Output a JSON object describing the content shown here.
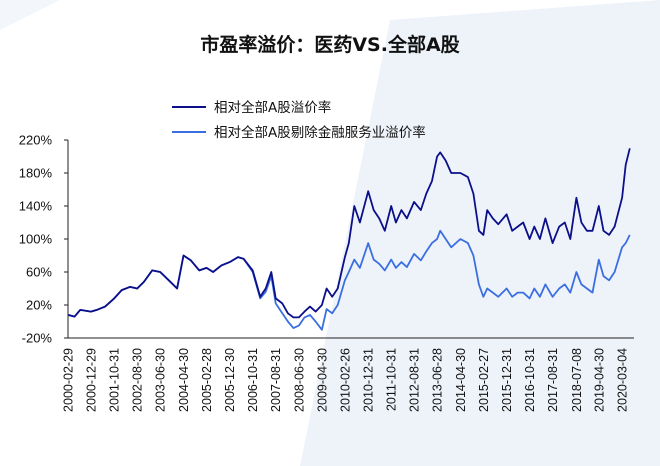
{
  "colors": {
    "series1": "#0b0f8a",
    "series2": "#3b6fe0",
    "background_shape": "#eef3fa"
  },
  "chart_data": {
    "type": "line",
    "title": "市盈率溢价：医药VS.全部A股",
    "xlabel": "",
    "ylabel": "",
    "ylim": [
      -20,
      220
    ],
    "y_ticks": [
      "220%",
      "180%",
      "140%",
      "100%",
      "60%",
      "20%",
      "-20%"
    ],
    "y_tick_values": [
      220,
      180,
      140,
      100,
      60,
      20,
      -20
    ],
    "x_ticks": [
      "2000-02-29",
      "2000-12-29",
      "2001-10-31",
      "2002-08-30",
      "2003-06-30",
      "2004-04-30",
      "2005-02-28",
      "2005-12-30",
      "2006-10-31",
      "2007-08-31",
      "2008-06-30",
      "2009-04-30",
      "2010-02-26",
      "2010-12-31",
      "2011-10-31",
      "2012-08-31",
      "2013-06-28",
      "2014-04-30",
      "2015-02-27",
      "2015-12-31",
      "2016-10-31",
      "2017-08-31",
      "2018-07-08",
      "2019-04-30",
      "2020-03-04"
    ],
    "x_tick_values": [
      2000.16,
      2000.99,
      2001.83,
      2002.66,
      2003.49,
      2004.33,
      2005.16,
      2006.0,
      2006.83,
      2007.66,
      2008.5,
      2009.33,
      2010.16,
      2011.0,
      2011.83,
      2012.66,
      2013.49,
      2014.33,
      2015.16,
      2016.0,
      2016.83,
      2017.66,
      2018.52,
      2019.33,
      2020.17
    ],
    "legend_position": "top-center",
    "grid": false,
    "series": [
      {
        "name": "相对全部A股溢价率",
        "x": [
          2000.16,
          2000.4,
          2000.6,
          2000.99,
          2001.2,
          2001.5,
          2001.83,
          2002.1,
          2002.4,
          2002.66,
          2002.9,
          2003.2,
          2003.49,
          2003.8,
          2004.1,
          2004.33,
          2004.6,
          2004.9,
          2005.16,
          2005.4,
          2005.7,
          2006.0,
          2006.3,
          2006.5,
          2006.83,
          2007.1,
          2007.3,
          2007.5,
          2007.66,
          2007.9,
          2008.1,
          2008.3,
          2008.5,
          2008.7,
          2008.9,
          2009.1,
          2009.33,
          2009.5,
          2009.7,
          2009.9,
          2010.16,
          2010.3,
          2010.5,
          2010.7,
          2011.0,
          2011.2,
          2011.4,
          2011.6,
          2011.83,
          2012.0,
          2012.2,
          2012.4,
          2012.66,
          2012.9,
          2013.1,
          2013.3,
          2013.49,
          2013.6,
          2013.8,
          2014.0,
          2014.33,
          2014.6,
          2014.8,
          2015.0,
          2015.16,
          2015.3,
          2015.5,
          2015.7,
          2016.0,
          2016.2,
          2016.4,
          2016.6,
          2016.83,
          2017.0,
          2017.2,
          2017.4,
          2017.66,
          2017.9,
          2018.1,
          2018.3,
          2018.52,
          2018.7,
          2018.9,
          2019.1,
          2019.33,
          2019.5,
          2019.7,
          2019.9,
          2020.17,
          2020.3,
          2020.45
        ],
        "values": [
          8,
          6,
          14,
          12,
          14,
          18,
          28,
          38,
          42,
          40,
          48,
          62,
          60,
          50,
          40,
          80,
          74,
          62,
          65,
          60,
          68,
          72,
          78,
          76,
          62,
          30,
          40,
          60,
          28,
          22,
          10,
          5,
          5,
          12,
          18,
          12,
          20,
          40,
          30,
          40,
          78,
          95,
          140,
          120,
          158,
          135,
          125,
          110,
          140,
          120,
          135,
          125,
          145,
          135,
          155,
          170,
          200,
          205,
          195,
          180,
          180,
          175,
          155,
          110,
          105,
          135,
          125,
          118,
          130,
          110,
          115,
          120,
          100,
          115,
          100,
          125,
          95,
          115,
          120,
          100,
          150,
          120,
          110,
          110,
          140,
          110,
          105,
          115,
          150,
          190,
          210
        ]
      },
      {
        "name": "相对全部A股剔除金融服务业溢价率",
        "x": [
          2000.16,
          2000.4,
          2000.6,
          2000.99,
          2001.2,
          2001.5,
          2001.83,
          2002.1,
          2002.4,
          2002.66,
          2002.9,
          2003.2,
          2003.49,
          2003.8,
          2004.1,
          2004.33,
          2004.6,
          2004.9,
          2005.16,
          2005.4,
          2005.7,
          2006.0,
          2006.3,
          2006.5,
          2006.83,
          2007.1,
          2007.3,
          2007.5,
          2007.66,
          2007.9,
          2008.1,
          2008.3,
          2008.5,
          2008.7,
          2008.9,
          2009.1,
          2009.33,
          2009.5,
          2009.7,
          2009.9,
          2010.16,
          2010.3,
          2010.5,
          2010.7,
          2011.0,
          2011.2,
          2011.4,
          2011.6,
          2011.83,
          2012.0,
          2012.2,
          2012.4,
          2012.66,
          2012.9,
          2013.1,
          2013.3,
          2013.49,
          2013.6,
          2013.8,
          2014.0,
          2014.33,
          2014.6,
          2014.8,
          2015.0,
          2015.16,
          2015.3,
          2015.5,
          2015.7,
          2016.0,
          2016.2,
          2016.4,
          2016.6,
          2016.83,
          2017.0,
          2017.2,
          2017.4,
          2017.66,
          2017.9,
          2018.1,
          2018.3,
          2018.52,
          2018.7,
          2018.9,
          2019.1,
          2019.33,
          2019.5,
          2019.7,
          2019.9,
          2020.17,
          2020.3,
          2020.45
        ],
        "values": [
          8,
          6,
          14,
          12,
          14,
          18,
          28,
          38,
          42,
          40,
          48,
          62,
          60,
          50,
          40,
          80,
          74,
          62,
          65,
          60,
          68,
          72,
          78,
          76,
          60,
          28,
          36,
          55,
          22,
          10,
          0,
          -8,
          -5,
          5,
          8,
          0,
          -10,
          15,
          10,
          20,
          50,
          60,
          75,
          65,
          95,
          75,
          70,
          62,
          75,
          65,
          72,
          66,
          82,
          74,
          85,
          95,
          100,
          110,
          100,
          90,
          100,
          95,
          80,
          45,
          30,
          40,
          35,
          30,
          40,
          30,
          35,
          35,
          28,
          40,
          30,
          45,
          30,
          40,
          45,
          35,
          60,
          45,
          40,
          35,
          75,
          55,
          50,
          60,
          90,
          95,
          105
        ]
      }
    ]
  }
}
